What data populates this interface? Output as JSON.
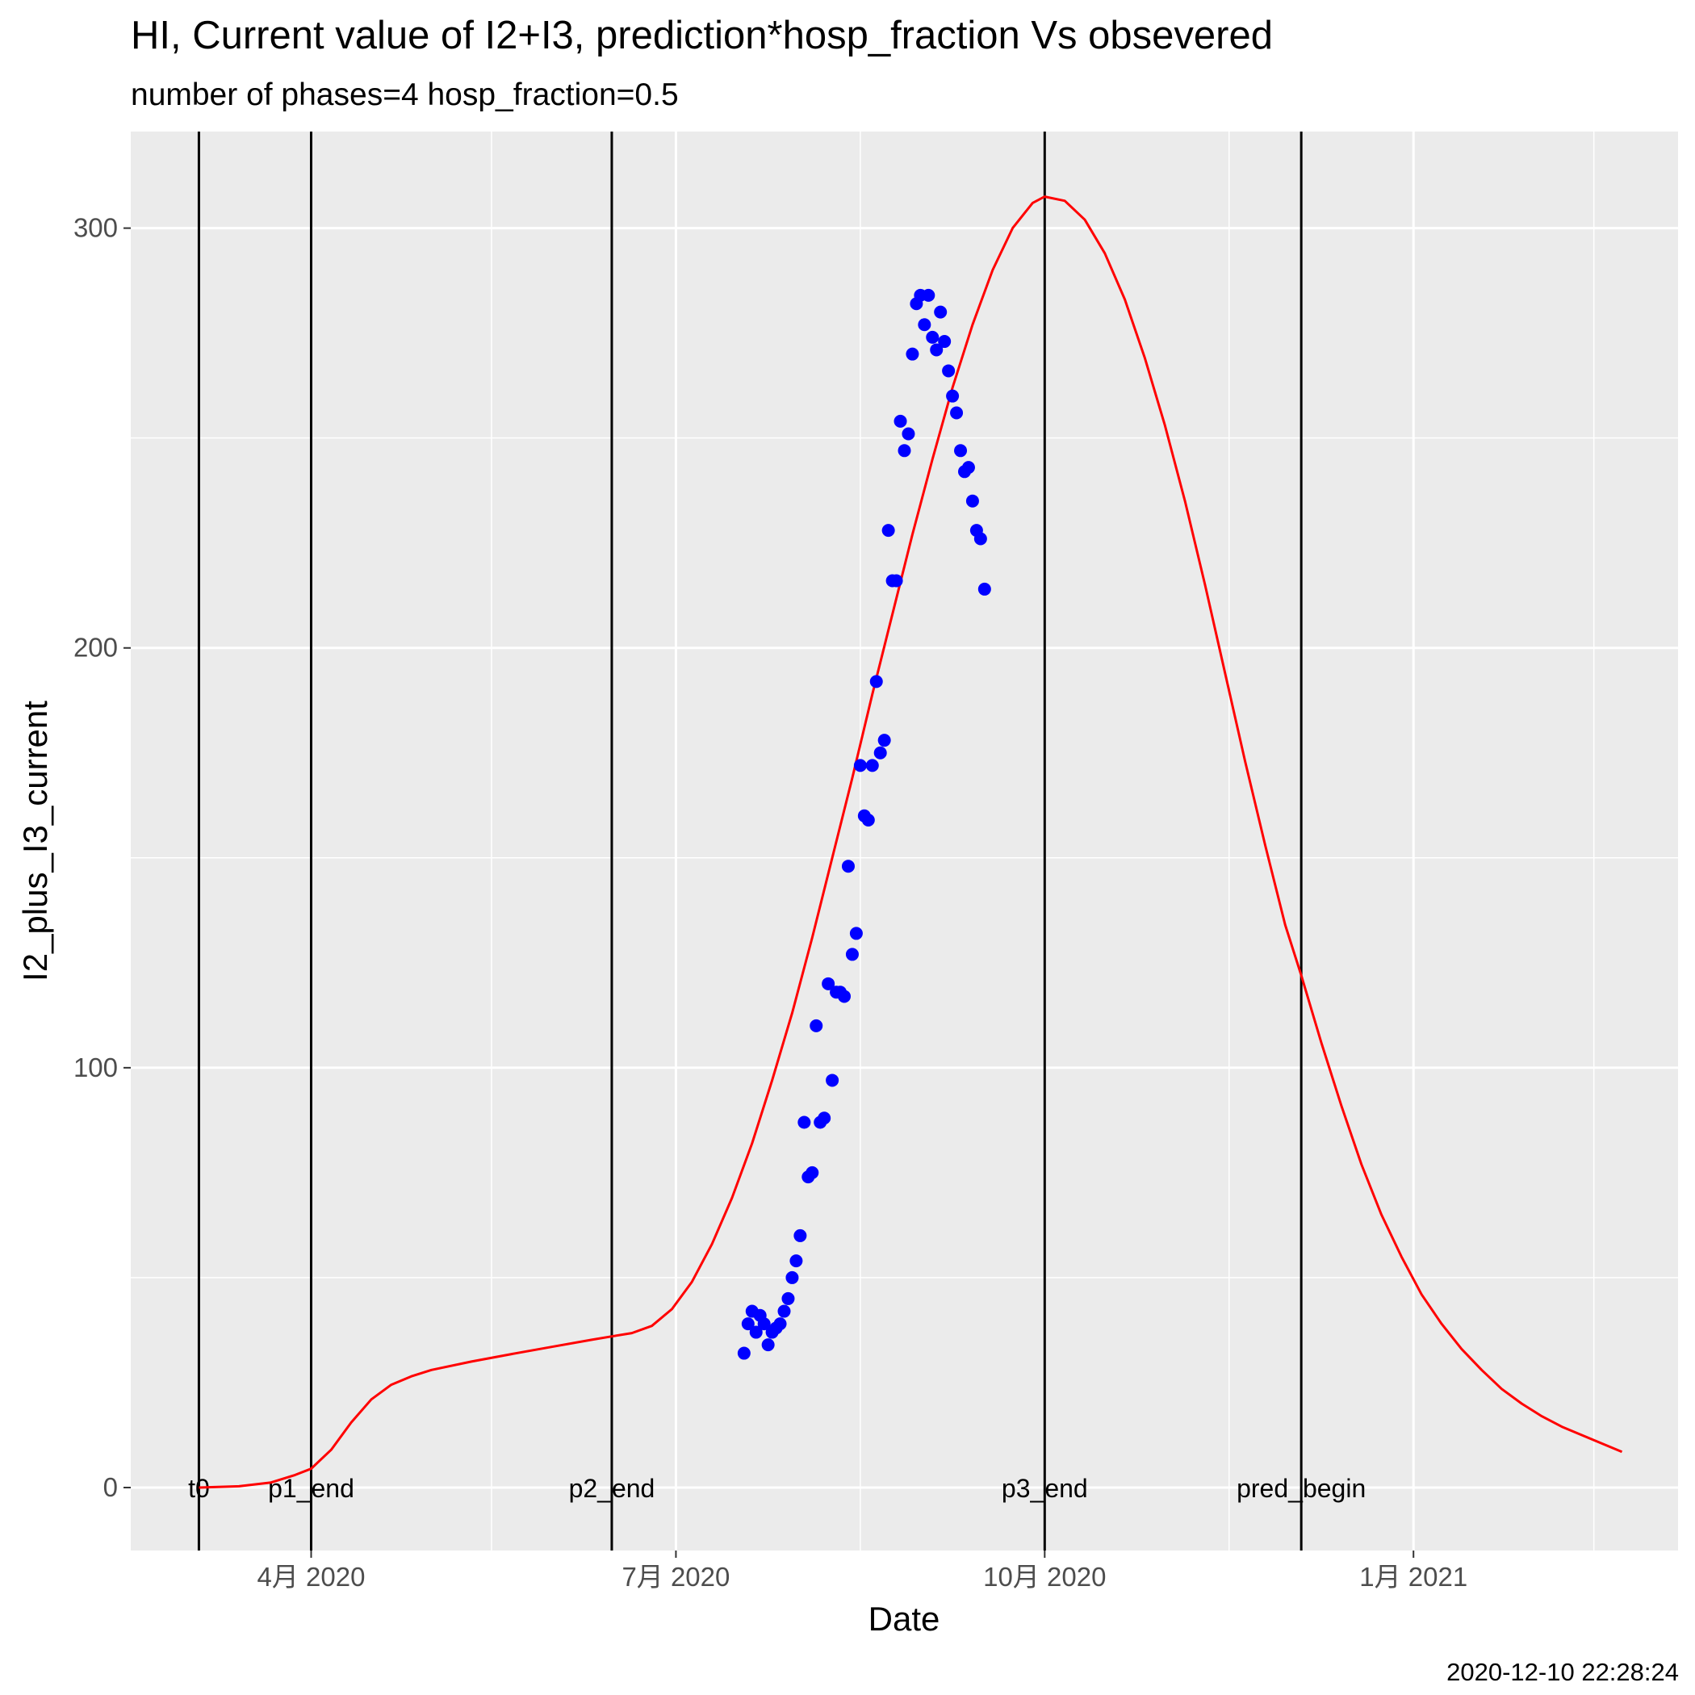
{
  "chart_data": {
    "type": "line",
    "title": "HI, Current value of I2+I3, prediction*hosp_fraction Vs obsevered",
    "subtitle": "number of phases=4   hosp_fraction=0.5",
    "xlabel": "Date",
    "ylabel": "I2_plus_I3_current",
    "caption": "2020-12-10 22:28:24",
    "xlim": [
      "2020-02-16",
      "2021-03-08"
    ],
    "ylim": [
      -15,
      323
    ],
    "x_ticks": [
      {
        "date": "2020-04-01",
        "label": "4月 2020"
      },
      {
        "date": "2020-07-01",
        "label": "7月 2020"
      },
      {
        "date": "2020-10-01",
        "label": "10月 2020"
      },
      {
        "date": "2021-01-01",
        "label": "1月 2021"
      }
    ],
    "x_minor_ticks": [
      "2020-02-15",
      "2020-05-16",
      "2020-08-16",
      "2020-11-16",
      "2021-02-15"
    ],
    "y_ticks": [
      0,
      100,
      200,
      300
    ],
    "y_minor_ticks": [
      50,
      150,
      250
    ],
    "grid": true,
    "legend": "none",
    "vlines": [
      {
        "date": "2020-03-04",
        "label": "t0"
      },
      {
        "date": "2020-04-01",
        "label": "p1_end"
      },
      {
        "date": "2020-06-15",
        "label": "p2_end"
      },
      {
        "date": "2020-10-01",
        "label": "p3_end"
      },
      {
        "date": "2020-12-04",
        "label": "pred_begin"
      }
    ],
    "series": [
      {
        "name": "prediction",
        "type": "line",
        "color": "#ff0000",
        "points": [
          [
            "2020-03-04",
            0
          ],
          [
            "2020-03-14",
            0.3
          ],
          [
            "2020-03-22",
            1.2
          ],
          [
            "2020-03-28",
            3
          ],
          [
            "2020-04-01",
            4.5
          ],
          [
            "2020-04-06",
            9
          ],
          [
            "2020-04-11",
            15.5
          ],
          [
            "2020-04-16",
            21
          ],
          [
            "2020-04-21",
            24.5
          ],
          [
            "2020-04-26",
            26.5
          ],
          [
            "2020-05-01",
            28
          ],
          [
            "2020-05-11",
            30
          ],
          [
            "2020-05-21",
            31.8
          ],
          [
            "2020-05-31",
            33.5
          ],
          [
            "2020-06-10",
            35.2
          ],
          [
            "2020-06-15",
            36
          ],
          [
            "2020-06-20",
            36.8
          ],
          [
            "2020-06-25",
            38.5
          ],
          [
            "2020-06-30",
            42.5
          ],
          [
            "2020-07-05",
            49
          ],
          [
            "2020-07-10",
            58
          ],
          [
            "2020-07-15",
            69
          ],
          [
            "2020-07-20",
            82
          ],
          [
            "2020-07-25",
            97
          ],
          [
            "2020-07-30",
            113
          ],
          [
            "2020-08-04",
            131
          ],
          [
            "2020-08-09",
            150
          ],
          [
            "2020-08-14",
            169
          ],
          [
            "2020-08-19",
            189
          ],
          [
            "2020-08-24",
            208
          ],
          [
            "2020-08-29",
            227
          ],
          [
            "2020-09-03",
            245
          ],
          [
            "2020-09-08",
            262
          ],
          [
            "2020-09-13",
            277
          ],
          [
            "2020-09-18",
            290
          ],
          [
            "2020-09-23",
            300
          ],
          [
            "2020-09-28",
            306
          ],
          [
            "2020-10-01",
            307.5
          ],
          [
            "2020-10-06",
            306.5
          ],
          [
            "2020-10-11",
            302
          ],
          [
            "2020-10-16",
            294
          ],
          [
            "2020-10-21",
            283
          ],
          [
            "2020-10-26",
            269
          ],
          [
            "2020-10-31",
            253
          ],
          [
            "2020-11-05",
            235
          ],
          [
            "2020-11-10",
            215
          ],
          [
            "2020-11-15",
            194
          ],
          [
            "2020-11-20",
            173
          ],
          [
            "2020-11-25",
            153
          ],
          [
            "2020-11-30",
            134
          ],
          [
            "2020-12-04",
            122
          ],
          [
            "2020-12-09",
            106
          ],
          [
            "2020-12-14",
            91
          ],
          [
            "2020-12-19",
            77
          ],
          [
            "2020-12-24",
            65
          ],
          [
            "2020-12-29",
            55
          ],
          [
            "2021-01-03",
            46
          ],
          [
            "2021-01-08",
            39
          ],
          [
            "2021-01-13",
            33
          ],
          [
            "2021-01-18",
            28
          ],
          [
            "2021-01-23",
            23.5
          ],
          [
            "2021-01-28",
            20
          ],
          [
            "2021-02-02",
            17
          ],
          [
            "2021-02-07",
            14.5
          ],
          [
            "2021-02-12",
            12.5
          ],
          [
            "2021-02-17",
            10.5
          ],
          [
            "2021-02-22",
            8.5
          ]
        ]
      },
      {
        "name": "observed",
        "type": "scatter",
        "color": "#0000ff",
        "points": [
          [
            "2020-07-18",
            32
          ],
          [
            "2020-07-19",
            39
          ],
          [
            "2020-07-20",
            42
          ],
          [
            "2020-07-21",
            37
          ],
          [
            "2020-07-22",
            41
          ],
          [
            "2020-07-23",
            39
          ],
          [
            "2020-07-24",
            34
          ],
          [
            "2020-07-25",
            37
          ],
          [
            "2020-07-26",
            38
          ],
          [
            "2020-07-27",
            39
          ],
          [
            "2020-07-28",
            42
          ],
          [
            "2020-07-29",
            45
          ],
          [
            "2020-07-30",
            50
          ],
          [
            "2020-07-31",
            54
          ],
          [
            "2020-08-01",
            60
          ],
          [
            "2020-08-02",
            87
          ],
          [
            "2020-08-03",
            74
          ],
          [
            "2020-08-04",
            75
          ],
          [
            "2020-08-05",
            110
          ],
          [
            "2020-08-06",
            87
          ],
          [
            "2020-08-07",
            88
          ],
          [
            "2020-08-08",
            120
          ],
          [
            "2020-08-09",
            97
          ],
          [
            "2020-08-10",
            118
          ],
          [
            "2020-08-11",
            118
          ],
          [
            "2020-08-12",
            117
          ],
          [
            "2020-08-13",
            148
          ],
          [
            "2020-08-14",
            127
          ],
          [
            "2020-08-15",
            132
          ],
          [
            "2020-08-16",
            172
          ],
          [
            "2020-08-17",
            160
          ],
          [
            "2020-08-18",
            159
          ],
          [
            "2020-08-19",
            172
          ],
          [
            "2020-08-20",
            192
          ],
          [
            "2020-08-21",
            175
          ],
          [
            "2020-08-22",
            178
          ],
          [
            "2020-08-23",
            228
          ],
          [
            "2020-08-24",
            216
          ],
          [
            "2020-08-25",
            216
          ],
          [
            "2020-08-26",
            254
          ],
          [
            "2020-08-27",
            247
          ],
          [
            "2020-08-28",
            251
          ],
          [
            "2020-08-29",
            270
          ],
          [
            "2020-08-30",
            282
          ],
          [
            "2020-08-31",
            284
          ],
          [
            "2020-09-01",
            277
          ],
          [
            "2020-09-02",
            284
          ],
          [
            "2020-09-03",
            274
          ],
          [
            "2020-09-04",
            271
          ],
          [
            "2020-09-05",
            280
          ],
          [
            "2020-09-06",
            273
          ],
          [
            "2020-09-07",
            266
          ],
          [
            "2020-09-08",
            260
          ],
          [
            "2020-09-09",
            256
          ],
          [
            "2020-09-10",
            247
          ],
          [
            "2020-09-11",
            242
          ],
          [
            "2020-09-12",
            243
          ],
          [
            "2020-09-13",
            235
          ],
          [
            "2020-09-14",
            228
          ],
          [
            "2020-09-15",
            226
          ],
          [
            "2020-09-16",
            214
          ]
        ]
      }
    ]
  }
}
